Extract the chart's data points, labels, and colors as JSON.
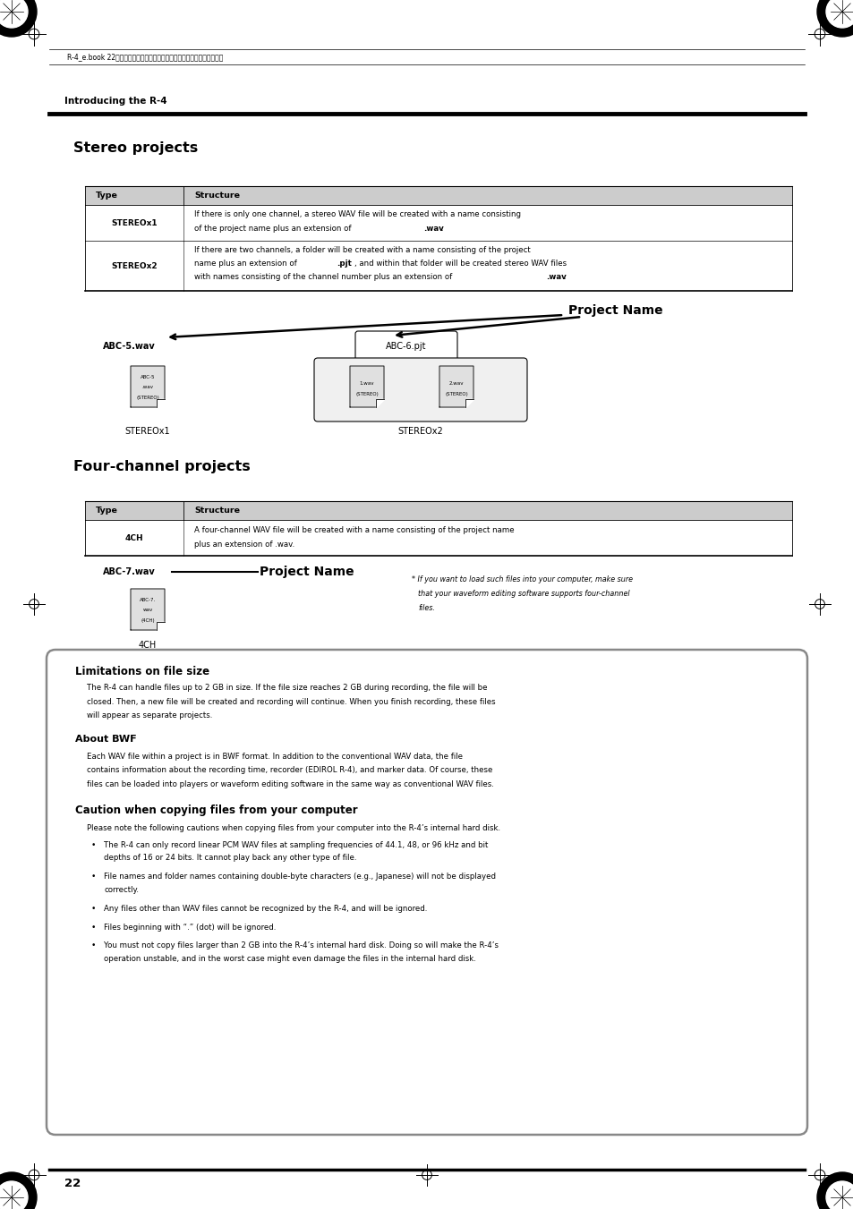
{
  "bg_color": "#ffffff",
  "page_width": 9.54,
  "page_height": 13.51,
  "header_text": "R-4_e.book 22ページ・２００５年２月１０日・木曜日・午後３時３６分",
  "section_header": "Introducing the R-4",
  "stereo_title": "Stereo projects",
  "four_channel_title": "Four-channel projects",
  "project_name_label": "Project Name",
  "abc5_label": "ABC-5.wav",
  "abc6_label": "ABC-6.pjt",
  "abc7_label": "ABC-7.wav",
  "stereox1_label": "STEREOx1",
  "stereox2_label": "STEREOx2",
  "fourchannel_label": "4CH",
  "note_text": "* If you want to load such files into your computer, make sure\nthat your waveform editing software supports four-channel\nfiles.",
  "box_title": "Limitations on file size",
  "box_text1": "The R-4 can handle files up to 2 GB in size. If the file size reaches 2 GB during recording, the file will be",
  "box_text2": "closed. Then, a new file will be created and recording will continue. When you finish recording, these files",
  "box_text3": "will appear as separate projects.",
  "about_bwf_title": "About BWF",
  "about_bwf_text1": "Each WAV file within a project is in BWF format. In addition to the conventional WAV data, the file",
  "about_bwf_text2": "contains information about the recording time, recorder (EDIROL R-4), and marker data. Of course, these",
  "about_bwf_text3": "files can be loaded into players or waveform editing software in the same way as conventional WAV files.",
  "caution_title": "Caution when copying files from your computer",
  "caution_intro": "Please note the following cautions when copying files from your computer into the R-4’s internal hard disk.",
  "caution_bullets": [
    [
      "The R-4 can only record linear PCM WAV files at sampling frequencies of 44.1, 48, or 96 kHz and bit",
      "depths of 16 or 24 bits. It cannot play back any other type of file."
    ],
    [
      "File names and folder names containing double-byte characters (e.g., Japanese) will not be displayed",
      "correctly."
    ],
    [
      "Any files other than WAV files cannot be recognized by the R-4, and will be ignored."
    ],
    [
      "Files beginning with “.” (dot) will be ignored."
    ],
    [
      "You must not copy files larger than 2 GB into the R-4’s internal hard disk. Doing so will make the R-4’s",
      "operation unstable, and in the worst case might even damage the files in the internal hard disk."
    ]
  ],
  "page_number": "22"
}
